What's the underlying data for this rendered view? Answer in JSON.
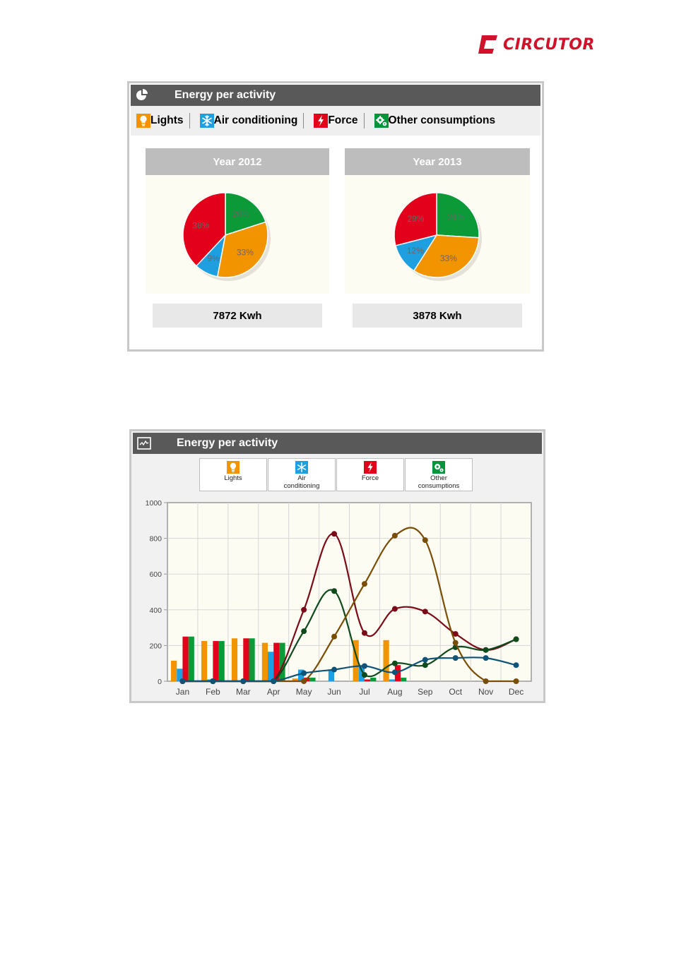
{
  "brand": {
    "name": "CIRCUTOR",
    "color": "#d0132a"
  },
  "colors": {
    "lights": "#f29400",
    "air": "#1ea0e0",
    "force": "#e2001a",
    "other": "#009639"
  },
  "pie_panel": {
    "title": "Energy per activity",
    "header_icon": "pie-chart-icon",
    "legend": [
      {
        "label": "Lights",
        "icon": "bulb-icon",
        "color": "#f29400"
      },
      {
        "label": "Air conditioning",
        "icon": "snowflake-icon",
        "color": "#1ea0e0"
      },
      {
        "label": "Force",
        "icon": "lightning-icon",
        "color": "#e2001a"
      },
      {
        "label": "Other consumptions",
        "icon": "gears-icon",
        "color": "#009639"
      }
    ],
    "years": [
      {
        "title": "Year 2012",
        "total": "7872 Kwh"
      },
      {
        "title": "Year 2013",
        "total": "3878 Kwh"
      }
    ]
  },
  "line_panel": {
    "title": "Energy per activity",
    "header_icon": "line-chart-icon",
    "legend": [
      {
        "label": "Lights",
        "icon": "bulb-icon"
      },
      {
        "label": "Air\nconditioning",
        "icon": "snowflake-icon"
      },
      {
        "label": "Force",
        "icon": "lightning-icon"
      },
      {
        "label": "Other\nconsumptions",
        "icon": "gears-icon"
      }
    ]
  },
  "chart_data": [
    {
      "type": "pie",
      "title": "Year 2012",
      "slices": [
        {
          "name": "Other consumptions",
          "value": 20,
          "label": "20%",
          "color": "#0c9a38"
        },
        {
          "name": "Lights",
          "value": 33,
          "label": "33%",
          "color": "#f29400"
        },
        {
          "name": "Air conditioning",
          "value": 9,
          "label": "9%",
          "color": "#1ea0e0"
        },
        {
          "name": "Force",
          "value": 38,
          "label": "38%",
          "color": "#e2001a"
        }
      ]
    },
    {
      "type": "pie",
      "title": "Year 2013",
      "slices": [
        {
          "name": "Other consumptions",
          "value": 26,
          "label": "26%",
          "color": "#0c9a38"
        },
        {
          "name": "Lights",
          "value": 33,
          "label": "33%",
          "color": "#f29400"
        },
        {
          "name": "Air conditioning",
          "value": 12,
          "label": "12%",
          "color": "#1ea0e0"
        },
        {
          "name": "Force",
          "value": 29,
          "label": "29%",
          "color": "#e2001a"
        }
      ]
    },
    {
      "type": "bar",
      "categories": [
        "Jan",
        "Feb",
        "Mar",
        "Apr",
        "May",
        "Jun",
        "Jul",
        "Aug",
        "Sep",
        "Oct",
        "Nov",
        "Dec"
      ],
      "ylim": [
        0,
        1000
      ],
      "yticks": [
        0,
        200,
        400,
        600,
        800,
        1000
      ],
      "grid": true,
      "bar_series": [
        {
          "name": "Lights",
          "color": "#f29400",
          "values": [
            115,
            225,
            240,
            215,
            15,
            0,
            230,
            230,
            0,
            0,
            0,
            0
          ]
        },
        {
          "name": "Air conditioning",
          "color": "#1ea0e0",
          "values": [
            70,
            10,
            5,
            165,
            65,
            60,
            90,
            10,
            0,
            0,
            0,
            0
          ]
        },
        {
          "name": "Force",
          "color": "#e2001a",
          "values": [
            250,
            225,
            240,
            215,
            20,
            0,
            10,
            90,
            0,
            0,
            0,
            0
          ]
        },
        {
          "name": "Other consumptions",
          "color": "#0c9a38",
          "values": [
            250,
            225,
            240,
            215,
            20,
            0,
            20,
            20,
            0,
            0,
            0,
            0
          ]
        }
      ],
      "line_series": [
        {
          "name": "Force",
          "color": "#7a0b17",
          "values": [
            0,
            0,
            0,
            0,
            400,
            825,
            270,
            405,
            390,
            265,
            175,
            235
          ]
        },
        {
          "name": "Other consumptions",
          "color": "#0f4a1d",
          "values": [
            0,
            0,
            0,
            0,
            280,
            505,
            35,
            100,
            90,
            190,
            175,
            235
          ]
        },
        {
          "name": "Lights",
          "color": "#7a4d05",
          "values": [
            0,
            0,
            0,
            0,
            0,
            250,
            545,
            815,
            790,
            215,
            0,
            0
          ]
        },
        {
          "name": "Air conditioning",
          "color": "#0f5376",
          "values": [
            0,
            0,
            0,
            0,
            45,
            65,
            85,
            50,
            120,
            130,
            130,
            90
          ]
        }
      ]
    }
  ]
}
